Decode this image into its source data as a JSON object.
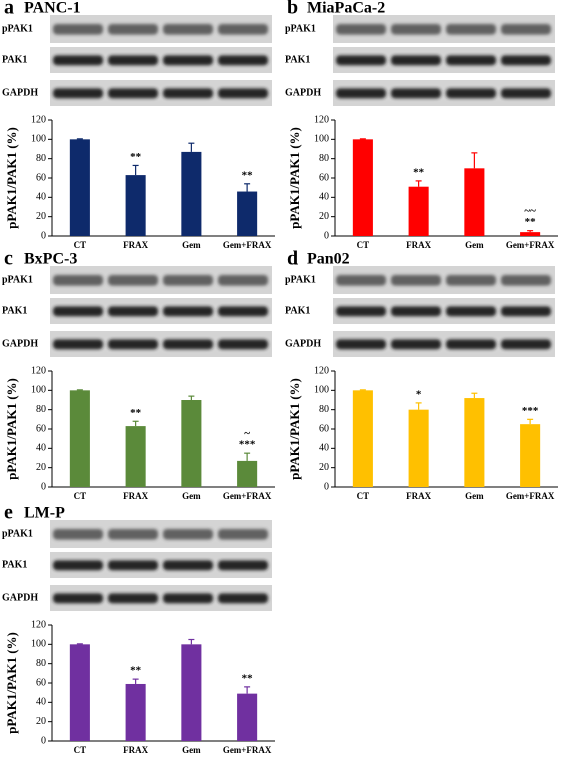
{
  "chart_data": [
    {
      "type": "bar",
      "panel": "a",
      "title": "PANC-1",
      "blot_labels": [
        "pPAK1",
        "PAK1",
        "GAPDH"
      ],
      "ylabel": "pPAK1/PAK1 (%)",
      "categories": [
        "CT",
        "FRAX",
        "Gem",
        "Gem+FRAX"
      ],
      "values": [
        100,
        63,
        87,
        46
      ],
      "errors": [
        0.5,
        10,
        9,
        8
      ],
      "annotations": [
        null,
        [
          "**"
        ],
        null,
        [
          "**"
        ]
      ],
      "color": "#0e2a6b",
      "ylim": [
        0,
        120
      ],
      "yticks": [
        0,
        20,
        40,
        60,
        80,
        100,
        120
      ]
    },
    {
      "type": "bar",
      "panel": "b",
      "title": "MiaPaCa-2",
      "blot_labels": [
        "pPAK1",
        "PAK1",
        "GAPDH"
      ],
      "ylabel": "pPAK1/PAK1 (%)",
      "categories": [
        "CT",
        "FRAX",
        "Gem",
        "Gem+FRAX"
      ],
      "values": [
        100,
        51,
        70,
        4
      ],
      "errors": [
        0.5,
        6,
        16,
        1.5
      ],
      "annotations": [
        null,
        [
          "**"
        ],
        null,
        [
          "~~",
          "**"
        ]
      ],
      "color": "#ff0000",
      "ylim": [
        0,
        120
      ],
      "yticks": [
        0,
        20,
        40,
        60,
        80,
        100,
        120
      ]
    },
    {
      "type": "bar",
      "panel": "c",
      "title": "BxPC-3",
      "blot_labels": [
        "pPAK1",
        "PAK1",
        "GAPDH"
      ],
      "ylabel": "pPAK1/PAK1 (%)",
      "categories": [
        "CT",
        "FRAX",
        "Gem",
        "Gem+FRAX"
      ],
      "values": [
        100,
        63,
        90,
        27
      ],
      "errors": [
        0.5,
        5,
        4,
        8
      ],
      "annotations": [
        null,
        [
          "**"
        ],
        null,
        [
          "~",
          "***"
        ]
      ],
      "color": "#5b8a3a",
      "ylim": [
        0,
        120
      ],
      "yticks": [
        0,
        20,
        40,
        60,
        80,
        100,
        120
      ]
    },
    {
      "type": "bar",
      "panel": "d",
      "title": "Pan02",
      "blot_labels": [
        "pPAK1",
        "PAK1",
        "GAPDH"
      ],
      "ylabel": "pPAK1/PAK1 (%)",
      "categories": [
        "CT",
        "FRAX",
        "Gem",
        "Gem+FRAX"
      ],
      "values": [
        100,
        80,
        92,
        65
      ],
      "errors": [
        0.5,
        7,
        5,
        5
      ],
      "annotations": [
        null,
        [
          "*"
        ],
        null,
        [
          "***"
        ]
      ],
      "color": "#ffc000",
      "ylim": [
        0,
        120
      ],
      "yticks": [
        0,
        20,
        40,
        60,
        80,
        100,
        120
      ]
    },
    {
      "type": "bar",
      "panel": "e",
      "title": "LM-P",
      "blot_labels": [
        "pPAK1",
        "PAK1",
        "GAPDH"
      ],
      "ylabel": "pPAK1/PAK1 (%)",
      "categories": [
        "CT",
        "FRAX",
        "Gem",
        "Gem+FRAX"
      ],
      "values": [
        100,
        59,
        100,
        49
      ],
      "errors": [
        0.5,
        5,
        5,
        7
      ],
      "annotations": [
        null,
        [
          "**"
        ],
        null,
        [
          "**"
        ]
      ],
      "color": "#7030a0",
      "ylim": [
        0,
        120
      ],
      "yticks": [
        0,
        20,
        40,
        60,
        80,
        100,
        120
      ]
    }
  ]
}
